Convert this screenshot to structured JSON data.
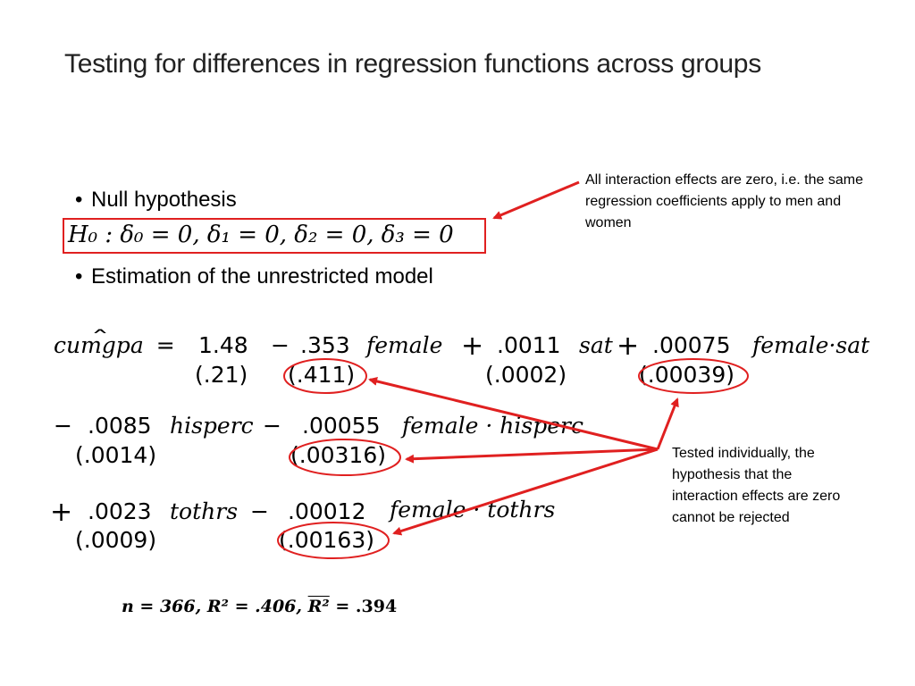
{
  "slide": {
    "title": "Testing for differences in regression functions across groups"
  },
  "bullets": [
    {
      "label": "Null hypothesis"
    },
    {
      "label": "Estimation of the unrestricted model"
    }
  ],
  "hypothesis": {
    "text": "H₀ : δ₀ = 0, δ₁ = 0, δ₂ = 0, δ₃ = 0"
  },
  "equation": {
    "lhs": "cumgpa",
    "line1": {
      "terms": [
        {
          "coef": "1.48",
          "var": "",
          "se": "(.21)"
        },
        {
          "sign": "−",
          "coef": ".353",
          "var": "female",
          "se": "(.411)"
        },
        {
          "sign": "+",
          "coef": ".0011",
          "var": "sat",
          "se": "(.0002)"
        },
        {
          "sign": "+",
          "coef": ".00075",
          "var": "female·sat",
          "se": "(.00039)"
        }
      ]
    },
    "line2": {
      "terms": [
        {
          "sign": "−",
          "coef": ".0085",
          "var": "hisperc",
          "se": "(.0014)"
        },
        {
          "sign": "−",
          "coef": ".00055",
          "var": "female · hisperc",
          "se": "(.00316)"
        }
      ]
    },
    "line3": {
      "terms": [
        {
          "sign": "+",
          "coef": ".0023",
          "var": "tothrs",
          "se": "(.0009)"
        },
        {
          "sign": "−",
          "coef": ".00012",
          "var": "female · tothrs",
          "se": "(.00163)"
        }
      ]
    },
    "stats": {
      "n": "n = 366, ",
      "r2": "R² = .406, ",
      "r2adj_base": "R²",
      "r2adj_value": " = .394"
    }
  },
  "annotations": {
    "top_note": "All interaction effects are zero, i.e. the same regression coefficients apply to men and women",
    "bottom_note": "Tested individually, the hypothesis that the interaction effects are zero cannot be rejected"
  },
  "colors": {
    "accent": "#e02020",
    "title": "#222222"
  }
}
